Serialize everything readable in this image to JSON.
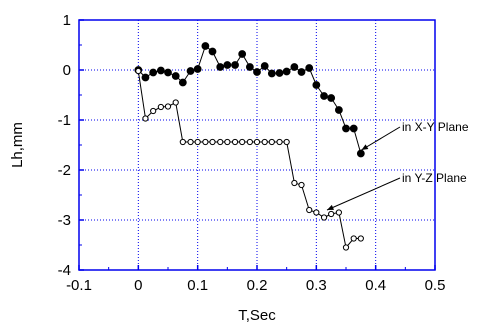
{
  "chart_data": {
    "type": "line",
    "title": "",
    "xlabel": "T,Sec",
    "ylabel": "Lh,mm",
    "xlim": [
      -0.1,
      0.5
    ],
    "ylim": [
      -4,
      1
    ],
    "xticks": [
      -0.1,
      0,
      0.1,
      0.2,
      0.3,
      0.4,
      0.5
    ],
    "xtick_labels": [
      "-0.1",
      "0",
      "0.1",
      "0.2",
      "0.3",
      "0.4",
      "0.5"
    ],
    "yticks": [
      -4,
      -3,
      -2,
      -1,
      0,
      1
    ],
    "ytick_labels": [
      "-4",
      "-3",
      "-2",
      "-1",
      "0",
      "1"
    ],
    "grid": true,
    "grid_style": "dotted",
    "frame_color": "#0000ee",
    "grid_color": "#0000ee",
    "series": [
      {
        "marker": "filled-circle",
        "color": "#000000",
        "x": [
          0.0,
          0.012,
          0.025,
          0.038,
          0.05,
          0.063,
          0.075,
          0.088,
          0.1,
          0.113,
          0.125,
          0.138,
          0.15,
          0.163,
          0.175,
          0.188,
          0.2,
          0.213,
          0.225,
          0.238,
          0.25,
          0.263,
          0.275,
          0.288,
          0.3,
          0.313,
          0.325,
          0.338,
          0.35,
          0.363,
          0.375
        ],
        "y": [
          0.0,
          -0.15,
          -0.05,
          -0.01,
          -0.05,
          -0.12,
          -0.25,
          -0.02,
          0.02,
          0.48,
          0.37,
          0.06,
          0.1,
          0.1,
          0.32,
          0.06,
          -0.04,
          0.08,
          -0.07,
          -0.06,
          -0.03,
          0.06,
          -0.04,
          0.04,
          -0.3,
          -0.52,
          -0.56,
          -0.8,
          -1.17,
          -1.17,
          -1.67
        ]
      },
      {
        "marker": "open-circle",
        "color": "#000000",
        "x": [
          0.0,
          0.012,
          0.025,
          0.038,
          0.05,
          0.063,
          0.075,
          0.088,
          0.1,
          0.113,
          0.125,
          0.138,
          0.15,
          0.163,
          0.175,
          0.188,
          0.2,
          0.213,
          0.225,
          0.238,
          0.25,
          0.263,
          0.275,
          0.288,
          0.3,
          0.313,
          0.325,
          0.338,
          0.35,
          0.363,
          0.375
        ],
        "y": [
          -0.02,
          -0.97,
          -0.82,
          -0.74,
          -0.73,
          -0.65,
          -1.44,
          -1.44,
          -1.44,
          -1.44,
          -1.44,
          -1.44,
          -1.44,
          -1.44,
          -1.44,
          -1.44,
          -1.44,
          -1.44,
          -1.44,
          -1.44,
          -1.44,
          -2.26,
          -2.3,
          -2.8,
          -2.85,
          -2.95,
          -2.88,
          -2.85,
          -3.55,
          -3.37,
          -3.37
        ]
      }
    ],
    "annotations": [
      {
        "text": "in X-Y Plane",
        "arrow_to_x": 0.376,
        "arrow_to_y": -1.6,
        "label_anchor": "right-upper"
      },
      {
        "text": "in Y-Z Plane",
        "arrow_to_x": 0.318,
        "arrow_to_y": -2.8,
        "label_anchor": "right-middle"
      }
    ]
  }
}
